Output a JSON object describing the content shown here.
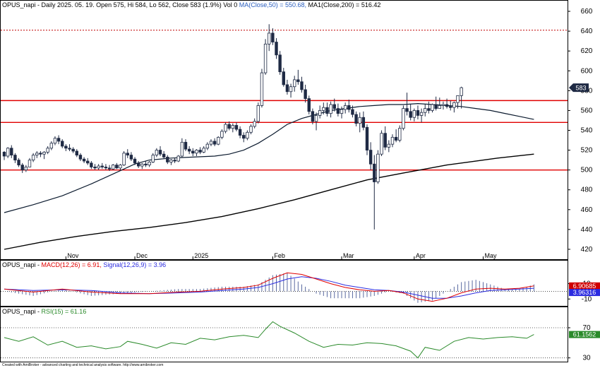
{
  "colors": {
    "price_up": "#ffffff",
    "price_down": "#1f2a44",
    "ma50": "#0b1a2e",
    "ma200": "#000000",
    "support_lines": "#e00000",
    "dotted_high": "#c00000",
    "macd": "#e00000",
    "signal": "#2b2be0",
    "macd_hist": "#5a6aa0",
    "rsi": "#2a8a2a",
    "grid": "#d9d9d9",
    "axis": "#000000"
  },
  "header": {
    "main": {
      "prefix": "OPUS_napi - Daily 2025. 05. 19. Open 575, Hi 584, Lo 562, Close 583 (1.9%) Vol 0 ",
      "ma50": "MA(Close,50) = 550.68,",
      "ma200": " MA1(Close,200) = 516.42"
    },
    "macd": {
      "prefix": "OPUS_napi - ",
      "macd": "MACD(12,26) = 6.91,",
      "signal": " Signal(12,26,9) = 3.96"
    },
    "rsi": {
      "prefix": "OPUS_napi - ",
      "rsi": "RSI(15) = 61.16"
    }
  },
  "footer": "Created with AmiBroker - advanced charting and technical analysis software. http://www.amibroker.com",
  "chart_data": [
    {
      "panel": "price",
      "type": "candlestick",
      "ylim": [
        410,
        670
      ],
      "yticks": [
        420,
        440,
        460,
        480,
        500,
        520,
        540,
        560,
        580,
        600,
        620,
        640,
        660
      ],
      "x_labels": [
        {
          "i": 17,
          "label": "Nov"
        },
        {
          "i": 36,
          "label": "Dec"
        },
        {
          "i": 52,
          "label": "2025"
        },
        {
          "i": 74,
          "label": "Feb"
        },
        {
          "i": 93,
          "label": "Mar"
        },
        {
          "i": 113,
          "label": "Apr"
        },
        {
          "i": 132,
          "label": "May"
        }
      ],
      "hlines": [
        500,
        548,
        570
      ],
      "dotted_hline": 641,
      "last_price_label": "583",
      "candles": [
        [
          518,
          519,
          510,
          514
        ],
        [
          514,
          523,
          512,
          522
        ],
        [
          522,
          525,
          512,
          515
        ],
        [
          515,
          517,
          507,
          510
        ],
        [
          510,
          512,
          503,
          505
        ],
        [
          505,
          507,
          497,
          500
        ],
        [
          500,
          505,
          498,
          503
        ],
        [
          503,
          512,
          503,
          510
        ],
        [
          510,
          517,
          508,
          515
        ],
        [
          515,
          519,
          512,
          517
        ],
        [
          517,
          519,
          513,
          516
        ],
        [
          516,
          519,
          511,
          518
        ],
        [
          518,
          524,
          516,
          522
        ],
        [
          522,
          529,
          520,
          527
        ],
        [
          527,
          534,
          525,
          532
        ],
        [
          532,
          535,
          526,
          529
        ],
        [
          529,
          531,
          522,
          524
        ],
        [
          524,
          526,
          519,
          522
        ],
        [
          522,
          526,
          519,
          521
        ],
        [
          521,
          523,
          517,
          519
        ],
        [
          519,
          521,
          513,
          515
        ],
        [
          515,
          517,
          509,
          511
        ],
        [
          511,
          513,
          507,
          509
        ],
        [
          509,
          512,
          505,
          507
        ],
        [
          507,
          509,
          501,
          503
        ],
        [
          503,
          506,
          500,
          502
        ],
        [
          502,
          506,
          500,
          504
        ],
        [
          504,
          507,
          501,
          503
        ],
        [
          503,
          506,
          500,
          502
        ],
        [
          502,
          505,
          499,
          501
        ],
        [
          501,
          506,
          500,
          505
        ],
        [
          505,
          507,
          501,
          502
        ],
        [
          502,
          506,
          500,
          505
        ],
        [
          505,
          519,
          504,
          517
        ],
        [
          517,
          521,
          512,
          515
        ],
        [
          515,
          518,
          509,
          511
        ],
        [
          511,
          513,
          505,
          507
        ],
        [
          507,
          509,
          502,
          504
        ],
        [
          504,
          507,
          501,
          506
        ],
        [
          506,
          509,
          503,
          505
        ],
        [
          505,
          509,
          503,
          508
        ],
        [
          508,
          517,
          507,
          515
        ],
        [
          515,
          522,
          513,
          520
        ],
        [
          520,
          524,
          514,
          516
        ],
        [
          516,
          519,
          511,
          513
        ],
        [
          513,
          515,
          506,
          508
        ],
        [
          508,
          511,
          505,
          510
        ],
        [
          510,
          512,
          507,
          509
        ],
        [
          509,
          515,
          508,
          514
        ],
        [
          514,
          532,
          513,
          528
        ],
        [
          528,
          531,
          519,
          521
        ],
        [
          521,
          524,
          516,
          519
        ],
        [
          519,
          522,
          514,
          517
        ],
        [
          517,
          521,
          514,
          520
        ],
        [
          520,
          523,
          516,
          518
        ],
        [
          518,
          524,
          517,
          522
        ],
        [
          522,
          528,
          520,
          526
        ],
        [
          526,
          531,
          524,
          529
        ],
        [
          529,
          532,
          524,
          526
        ],
        [
          526,
          534,
          525,
          533
        ],
        [
          533,
          541,
          531,
          539
        ],
        [
          539,
          548,
          537,
          546
        ],
        [
          546,
          549,
          540,
          542
        ],
        [
          542,
          547,
          538,
          545
        ],
        [
          545,
          548,
          539,
          541
        ],
        [
          541,
          544,
          532,
          535
        ],
        [
          535,
          538,
          528,
          532
        ],
        [
          532,
          540,
          530,
          538
        ],
        [
          538,
          546,
          536,
          544
        ],
        [
          544,
          552,
          542,
          549
        ],
        [
          549,
          568,
          547,
          565
        ],
        [
          565,
          602,
          563,
          598
        ],
        [
          598,
          632,
          596,
          627
        ],
        [
          627,
          647,
          620,
          638
        ],
        [
          638,
          643,
          626,
          629
        ],
        [
          629,
          633,
          612,
          616
        ],
        [
          616,
          620,
          596,
          599
        ],
        [
          599,
          603,
          584,
          586
        ],
        [
          586,
          591,
          576,
          579
        ],
        [
          579,
          587,
          573,
          584
        ],
        [
          584,
          595,
          579,
          591
        ],
        [
          591,
          601,
          586,
          589
        ],
        [
          589,
          594,
          578,
          581
        ],
        [
          581,
          586,
          568,
          572
        ],
        [
          572,
          575,
          556,
          559
        ],
        [
          559,
          562,
          546,
          549
        ],
        [
          549,
          558,
          540,
          555
        ],
        [
          555,
          565,
          552,
          560
        ],
        [
          560,
          568,
          556,
          563
        ],
        [
          563,
          568,
          554,
          557
        ],
        [
          557,
          569,
          553,
          566
        ],
        [
          566,
          572,
          559,
          562
        ],
        [
          562,
          567,
          554,
          557
        ],
        [
          557,
          564,
          552,
          561
        ],
        [
          561,
          568,
          557,
          565
        ],
        [
          565,
          571,
          558,
          561
        ],
        [
          561,
          565,
          553,
          556
        ],
        [
          556,
          559,
          544,
          547
        ],
        [
          547,
          558,
          538,
          553
        ],
        [
          553,
          559,
          540,
          543
        ],
        [
          543,
          546,
          515,
          520
        ],
        [
          520,
          528,
          500,
          506
        ],
        [
          506,
          515,
          440,
          488
        ],
        [
          488,
          520,
          486,
          516
        ],
        [
          516,
          540,
          514,
          537
        ],
        [
          537,
          544,
          520,
          523
        ],
        [
          523,
          530,
          518,
          526
        ],
        [
          526,
          536,
          523,
          533
        ],
        [
          533,
          541,
          528,
          530
        ],
        [
          530,
          545,
          528,
          542
        ],
        [
          542,
          565,
          540,
          562
        ],
        [
          562,
          578,
          555,
          559
        ],
        [
          559,
          566,
          550,
          553
        ],
        [
          553,
          562,
          549,
          560
        ],
        [
          560,
          565,
          551,
          555
        ],
        [
          555,
          562,
          548,
          558
        ],
        [
          558,
          566,
          554,
          562
        ],
        [
          562,
          569,
          557,
          560
        ],
        [
          560,
          567,
          558,
          566
        ],
        [
          566,
          574,
          560,
          562
        ],
        [
          562,
          573,
          562,
          565
        ],
        [
          565,
          569,
          561,
          566
        ],
        [
          566,
          572,
          562,
          564
        ],
        [
          564,
          570,
          560,
          563
        ],
        [
          563,
          569,
          558,
          568
        ],
        [
          568,
          575,
          562,
          575
        ],
        [
          575,
          584,
          562,
          583
        ]
      ],
      "ma50": [
        [
          0,
          457
        ],
        [
          8,
          465
        ],
        [
          16,
          474
        ],
        [
          24,
          486
        ],
        [
          30,
          496
        ],
        [
          36,
          506
        ],
        [
          40,
          510
        ],
        [
          46,
          512
        ],
        [
          52,
          513
        ],
        [
          58,
          514
        ],
        [
          62,
          516
        ],
        [
          66,
          520
        ],
        [
          70,
          527
        ],
        [
          74,
          536
        ],
        [
          78,
          546
        ],
        [
          82,
          552
        ],
        [
          86,
          556
        ],
        [
          90,
          560
        ],
        [
          94,
          562
        ],
        [
          98,
          564
        ],
        [
          102,
          565
        ],
        [
          106,
          566
        ],
        [
          110,
          566
        ],
        [
          114,
          567
        ],
        [
          118,
          566
        ],
        [
          122,
          565
        ],
        [
          126,
          564
        ],
        [
          130,
          562
        ],
        [
          134,
          560
        ],
        [
          138,
          557
        ],
        [
          142,
          554
        ],
        [
          146,
          551
        ]
      ],
      "ma200": [
        [
          0,
          420
        ],
        [
          10,
          427
        ],
        [
          20,
          433
        ],
        [
          30,
          438
        ],
        [
          40,
          442
        ],
        [
          50,
          447
        ],
        [
          60,
          453
        ],
        [
          70,
          461
        ],
        [
          80,
          470
        ],
        [
          90,
          480
        ],
        [
          100,
          490
        ],
        [
          110,
          497
        ],
        [
          116,
          501
        ],
        [
          122,
          505
        ],
        [
          128,
          508
        ],
        [
          136,
          512
        ],
        [
          146,
          516
        ]
      ]
    },
    {
      "panel": "macd",
      "type": "line",
      "yticks": [
        -10,
        10
      ],
      "ylim": [
        -18,
        28
      ],
      "macd_label": "6.90685",
      "signal_label": "3.96316",
      "macd": [
        [
          0,
          3
        ],
        [
          8,
          -1
        ],
        [
          16,
          3
        ],
        [
          24,
          -1
        ],
        [
          32,
          -3
        ],
        [
          40,
          -3
        ],
        [
          48,
          -1
        ],
        [
          54,
          0
        ],
        [
          60,
          3
        ],
        [
          66,
          5
        ],
        [
          70,
          8
        ],
        [
          74,
          17
        ],
        [
          78,
          24
        ],
        [
          82,
          22
        ],
        [
          86,
          16
        ],
        [
          90,
          10
        ],
        [
          94,
          5
        ],
        [
          98,
          2
        ],
        [
          102,
          0
        ],
        [
          106,
          1
        ],
        [
          110,
          -2
        ],
        [
          114,
          -10
        ],
        [
          118,
          -13
        ],
        [
          122,
          -9
        ],
        [
          126,
          -2
        ],
        [
          130,
          3
        ],
        [
          134,
          4
        ],
        [
          138,
          3
        ],
        [
          142,
          4
        ],
        [
          146,
          7
        ]
      ],
      "signal": [
        [
          0,
          3
        ],
        [
          8,
          1
        ],
        [
          16,
          2
        ],
        [
          24,
          1
        ],
        [
          32,
          -2
        ],
        [
          40,
          -3
        ],
        [
          48,
          -2
        ],
        [
          54,
          -1
        ],
        [
          60,
          1
        ],
        [
          66,
          3
        ],
        [
          70,
          5
        ],
        [
          74,
          10
        ],
        [
          78,
          16
        ],
        [
          82,
          19
        ],
        [
          86,
          17
        ],
        [
          90,
          13
        ],
        [
          94,
          8
        ],
        [
          98,
          5
        ],
        [
          102,
          2
        ],
        [
          106,
          1
        ],
        [
          110,
          -1
        ],
        [
          114,
          -5
        ],
        [
          118,
          -9
        ],
        [
          122,
          -9
        ],
        [
          126,
          -6
        ],
        [
          130,
          -2
        ],
        [
          134,
          1
        ],
        [
          138,
          2
        ],
        [
          142,
          3
        ],
        [
          146,
          4
        ]
      ]
    },
    {
      "panel": "rsi",
      "type": "line",
      "yticks": [
        30,
        70
      ],
      "ylim": [
        25,
        85
      ],
      "rsi_label": "61.1562",
      "rsi": [
        [
          0,
          57
        ],
        [
          4,
          52
        ],
        [
          8,
          58
        ],
        [
          12,
          47
        ],
        [
          16,
          52
        ],
        [
          20,
          44
        ],
        [
          24,
          46
        ],
        [
          28,
          42
        ],
        [
          32,
          45
        ],
        [
          34,
          52
        ],
        [
          38,
          48
        ],
        [
          42,
          43
        ],
        [
          46,
          50
        ],
        [
          50,
          48
        ],
        [
          54,
          56
        ],
        [
          58,
          54
        ],
        [
          62,
          58
        ],
        [
          66,
          60
        ],
        [
          70,
          57
        ],
        [
          72,
          68
        ],
        [
          74,
          78
        ],
        [
          76,
          72
        ],
        [
          80,
          63
        ],
        [
          84,
          52
        ],
        [
          88,
          44
        ],
        [
          92,
          48
        ],
        [
          96,
          47
        ],
        [
          100,
          50
        ],
        [
          104,
          49
        ],
        [
          108,
          46
        ],
        [
          112,
          39
        ],
        [
          114,
          30
        ],
        [
          116,
          44
        ],
        [
          120,
          40
        ],
        [
          124,
          52
        ],
        [
          128,
          57
        ],
        [
          132,
          55
        ],
        [
          136,
          57
        ],
        [
          140,
          58
        ],
        [
          144,
          56
        ],
        [
          146,
          61
        ]
      ]
    }
  ]
}
